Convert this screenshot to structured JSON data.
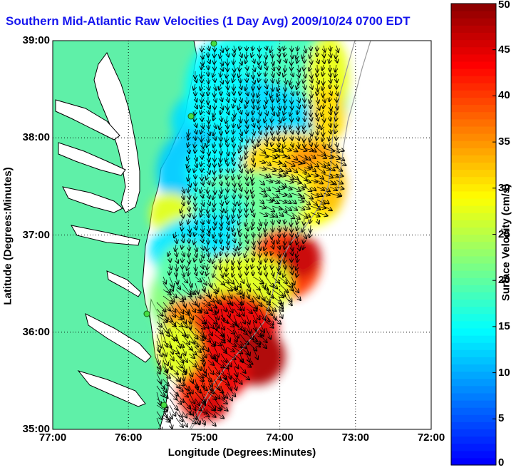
{
  "title": "Southern Mid-Atlantic Raw Velocities (1 Day Avg) 2009/10/24 0700 EDT",
  "map": {
    "x_axis_label": "Longitude (Degrees:Minutes)",
    "y_axis_label": "Latitude (Degrees:Minutes)",
    "longitude_ticks": [
      "77:00",
      "76:00",
      "75:00",
      "74:00",
      "73:00",
      "72:00"
    ],
    "latitude_ticks": [
      "39:00",
      "38:00",
      "37:00",
      "36:00",
      "35:00"
    ],
    "lon_range": [
      -77,
      -72
    ],
    "lat_range": [
      35,
      39
    ],
    "grid": "dotted",
    "land_color": "#5ff0a8",
    "coastline_color": "#000000"
  },
  "colorbar": {
    "label": "Surface Velocity (cm/s)",
    "ticks": [
      "50",
      "45",
      "40",
      "35",
      "30",
      "25",
      "20",
      "15",
      "10",
      "5",
      "0"
    ],
    "range": [
      0,
      50
    ],
    "colormap": "jet"
  }
}
